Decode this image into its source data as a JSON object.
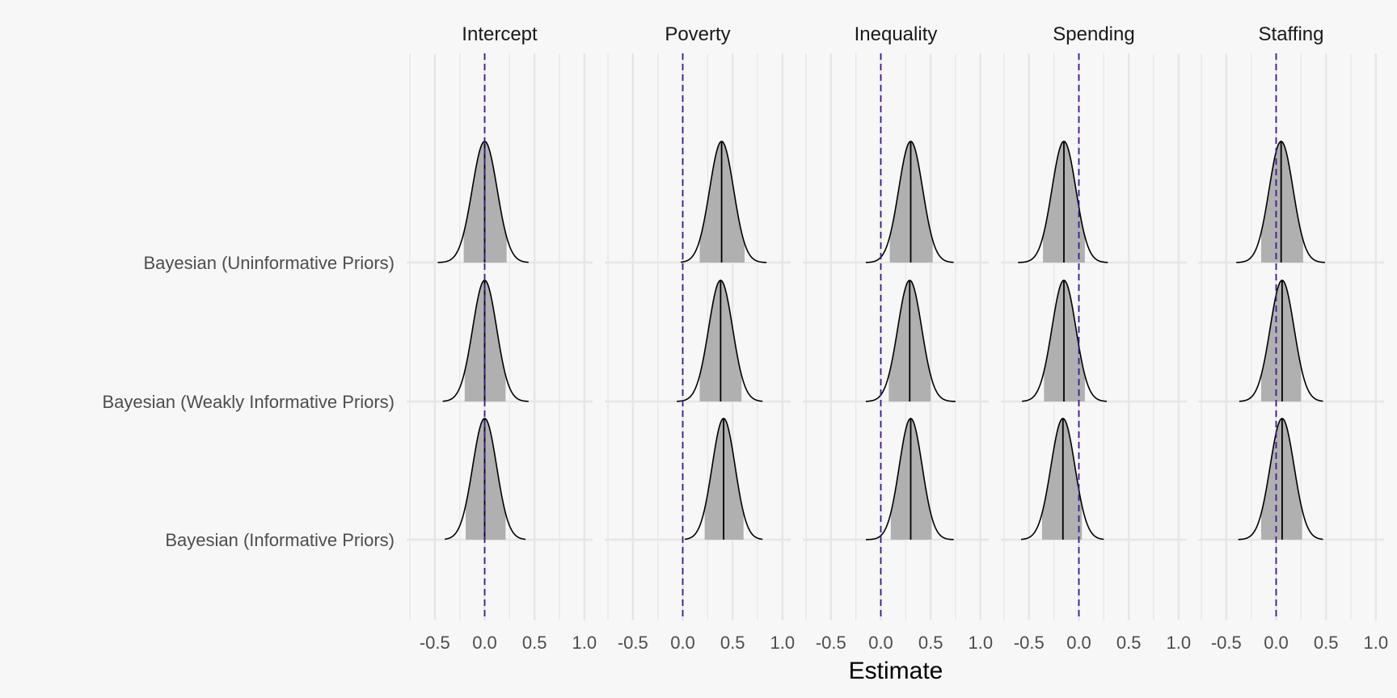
{
  "chart_data": {
    "type": "ridgeline-density",
    "xlabel": "Estimate",
    "x_ticks": [
      -0.5,
      0.0,
      0.5,
      1.0
    ],
    "x_tick_labels": [
      "-0.5",
      "0.0",
      "0.5",
      "1.0"
    ],
    "xlim": [
      -0.75,
      1.05
    ],
    "reference_line_x": 0,
    "colors": {
      "background": "#f7f7f7",
      "grid": "#e6e6e6",
      "fill": "#b0b0b0",
      "outline": "#000000",
      "reference_line": "#3f1a8c"
    },
    "rows": [
      "Bayesian (Uninformative Priors)",
      "Bayesian (Weakly Informative Priors)",
      "Bayesian (Informative Priors)"
    ],
    "facets": [
      {
        "name": "Intercept",
        "densities": [
          {
            "row": "Bayesian (Uninformative Priors)",
            "median": 0.0,
            "sd": 0.125,
            "ci": [
              -0.21,
              0.22
            ],
            "range": [
              -0.47,
              0.44
            ]
          },
          {
            "row": "Bayesian (Weakly Informative Priors)",
            "median": 0.0,
            "sd": 0.12,
            "ci": [
              -0.2,
              0.21
            ],
            "range": [
              -0.42,
              0.44
            ]
          },
          {
            "row": "Bayesian (Informative Priors)",
            "median": 0.0,
            "sd": 0.12,
            "ci": [
              -0.19,
              0.21
            ],
            "range": [
              -0.4,
              0.41
            ]
          }
        ]
      },
      {
        "name": "Poverty",
        "densities": [
          {
            "row": "Bayesian (Uninformative Priors)",
            "median": 0.39,
            "sd": 0.12,
            "ci": [
              0.17,
              0.62
            ],
            "range": [
              -0.02,
              0.84
            ]
          },
          {
            "row": "Bayesian (Weakly Informative Priors)",
            "median": 0.38,
            "sd": 0.12,
            "ci": [
              0.17,
              0.59
            ],
            "range": [
              -0.06,
              0.8
            ]
          },
          {
            "row": "Bayesian (Informative Priors)",
            "median": 0.41,
            "sd": 0.115,
            "ci": [
              0.22,
              0.61
            ],
            "range": [
              0.02,
              0.8
            ]
          }
        ]
      },
      {
        "name": "Inequality",
        "densities": [
          {
            "row": "Bayesian (Uninformative Priors)",
            "median": 0.3,
            "sd": 0.12,
            "ci": [
              0.09,
              0.52
            ],
            "range": [
              -0.15,
              0.73
            ]
          },
          {
            "row": "Bayesian (Weakly Informative Priors)",
            "median": 0.29,
            "sd": 0.12,
            "ci": [
              0.08,
              0.5
            ],
            "range": [
              -0.15,
              0.75
            ]
          },
          {
            "row": "Bayesian (Informative Priors)",
            "median": 0.3,
            "sd": 0.115,
            "ci": [
              0.1,
              0.51
            ],
            "range": [
              -0.15,
              0.73
            ]
          }
        ]
      },
      {
        "name": "Spending",
        "densities": [
          {
            "row": "Bayesian (Uninformative Priors)",
            "median": -0.15,
            "sd": 0.12,
            "ci": [
              -0.36,
              0.06
            ],
            "range": [
              -0.61,
              0.29
            ]
          },
          {
            "row": "Bayesian (Weakly Informative Priors)",
            "median": -0.15,
            "sd": 0.12,
            "ci": [
              -0.35,
              0.06
            ],
            "range": [
              -0.57,
              0.28
            ]
          },
          {
            "row": "Bayesian (Informative Priors)",
            "median": -0.16,
            "sd": 0.12,
            "ci": [
              -0.37,
              0.03
            ],
            "range": [
              -0.58,
              0.25
            ]
          }
        ]
      },
      {
        "name": "Staffing",
        "densities": [
          {
            "row": "Bayesian (Uninformative Priors)",
            "median": 0.05,
            "sd": 0.12,
            "ci": [
              -0.15,
              0.27
            ],
            "range": [
              -0.4,
              0.49
            ]
          },
          {
            "row": "Bayesian (Weakly Informative Priors)",
            "median": 0.06,
            "sd": 0.12,
            "ci": [
              -0.15,
              0.25
            ],
            "range": [
              -0.37,
              0.47
            ]
          },
          {
            "row": "Bayesian (Informative Priors)",
            "median": 0.06,
            "sd": 0.12,
            "ci": [
              -0.15,
              0.26
            ],
            "range": [
              -0.38,
              0.47
            ]
          }
        ]
      }
    ]
  }
}
